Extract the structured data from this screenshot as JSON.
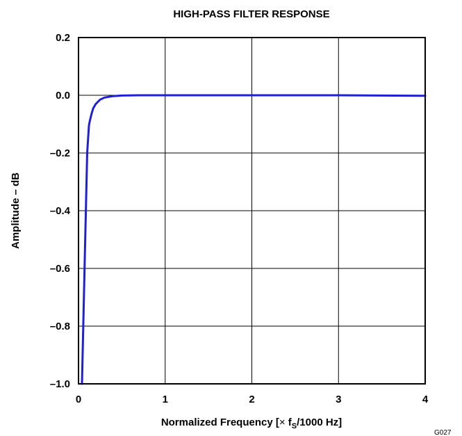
{
  "chart_data": {
    "type": "line",
    "title": "HIGH-PASS FILTER RESPONSE",
    "xlabel_parts": {
      "prefix": "Normalized Frequency [",
      "times": "×",
      "f": " f",
      "sub": "S",
      "suffix": "/1000 Hz]"
    },
    "ylabel": "Amplitude – dB",
    "xlim": [
      0,
      4
    ],
    "ylim": [
      -1.0,
      0.2
    ],
    "x_ticks": [
      0,
      1,
      2,
      3,
      4
    ],
    "x_tick_labels": [
      "0",
      "1",
      "2",
      "3",
      "4"
    ],
    "y_ticks": [
      0.2,
      0.0,
      -0.2,
      -0.4,
      -0.6,
      -0.8,
      -1.0
    ],
    "y_tick_labels": [
      "0.2",
      "0.0",
      "–0.2",
      "–0.4",
      "–0.6",
      "–0.8",
      "–1.0"
    ],
    "grid": true,
    "series": [
      {
        "color": "#1f1fd6",
        "x": [
          0.04,
          0.07,
          0.1,
          0.12,
          0.13,
          0.15,
          0.17,
          0.2,
          0.25,
          0.3,
          0.4,
          0.5,
          0.7,
          1.0,
          2.0,
          3.0,
          4.0
        ],
        "y": [
          -1.0,
          -0.6,
          -0.2,
          -0.105,
          -0.09,
          -0.065,
          -0.045,
          -0.03,
          -0.015,
          -0.008,
          -0.003,
          -0.001,
          0.0,
          0.0,
          0.0,
          0.0,
          -0.002
        ]
      }
    ],
    "figure_code": "G027"
  }
}
